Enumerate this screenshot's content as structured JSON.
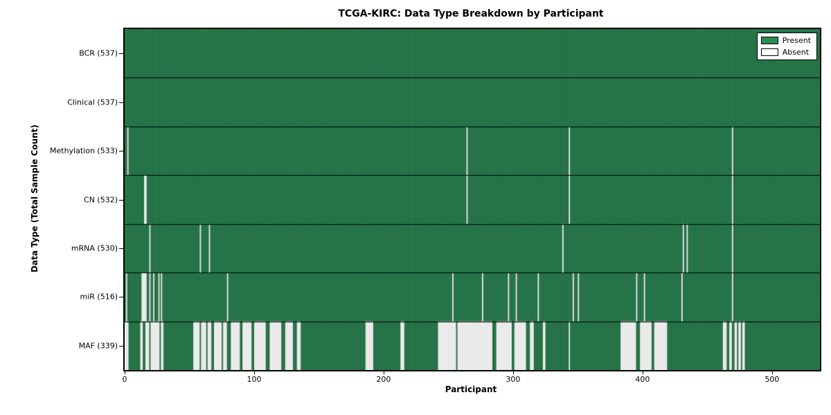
{
  "chart_data": {
    "type": "heatmap",
    "title": "TCGA-KIRC: Data Type Breakdown by Participant",
    "xlabel": "Participant",
    "ylabel": "Data Type (Total Sample Count)",
    "x_range": [
      0,
      537
    ],
    "x_ticks": [
      0,
      100,
      200,
      300,
      400,
      500
    ],
    "grid": false,
    "legend_position": "upper right",
    "legend": {
      "present": "Present",
      "absent": "Absent"
    },
    "colors": {
      "present": "#2e8b57",
      "present_edge": "rgba(0,0,0,0.45)",
      "absent": "#ffffff",
      "absent_edge": "rgba(0,0,0,0.22)",
      "row_separator": "#000000",
      "frame": "#000000"
    },
    "rows": [
      {
        "label": "BCR (537)",
        "data_type": "BCR",
        "present_count": 537,
        "absent_ranges": []
      },
      {
        "label": "Clinical (537)",
        "data_type": "Clinical",
        "present_count": 537,
        "absent_ranges": []
      },
      {
        "label": "Methylation (533)",
        "data_type": "Methylation",
        "present_count": 533,
        "absent_ranges": [
          [
            2,
            2
          ],
          [
            264,
            264
          ],
          [
            343,
            343
          ],
          [
            469,
            469
          ]
        ]
      },
      {
        "label": "CN (532)",
        "data_type": "CN",
        "present_count": 532,
        "absent_ranges": [
          [
            15,
            16
          ],
          [
            264,
            264
          ],
          [
            343,
            343
          ],
          [
            469,
            469
          ]
        ]
      },
      {
        "label": "mRNA (530)",
        "data_type": "mRNA",
        "present_count": 530,
        "absent_ranges": [
          [
            19,
            19
          ],
          [
            58,
            58
          ],
          [
            65,
            65
          ],
          [
            338,
            338
          ],
          [
            431,
            431
          ],
          [
            434,
            434
          ],
          [
            469,
            469
          ]
        ]
      },
      {
        "label": "miR (516)",
        "data_type": "miR",
        "present_count": 516,
        "absent_ranges": [
          [
            1,
            1
          ],
          [
            13,
            16
          ],
          [
            19,
            19
          ],
          [
            22,
            22
          ],
          [
            26,
            26
          ],
          [
            28,
            28
          ],
          [
            79,
            79
          ],
          [
            253,
            253
          ],
          [
            276,
            276
          ],
          [
            296,
            296
          ],
          [
            302,
            302
          ],
          [
            319,
            319
          ],
          [
            346,
            346
          ],
          [
            350,
            350
          ],
          [
            395,
            395
          ],
          [
            401,
            401
          ],
          [
            430,
            430
          ],
          [
            469,
            469
          ]
        ]
      },
      {
        "label": "MAF (339)",
        "data_type": "MAF",
        "present_count": 339,
        "absent_ranges": [
          [
            0,
            2
          ],
          [
            12,
            13
          ],
          [
            16,
            18
          ],
          [
            20,
            26
          ],
          [
            28,
            29
          ],
          [
            53,
            57
          ],
          [
            59,
            62
          ],
          [
            64,
            66
          ],
          [
            69,
            74
          ],
          [
            76,
            78
          ],
          [
            82,
            88
          ],
          [
            91,
            97
          ],
          [
            100,
            108
          ],
          [
            112,
            120
          ],
          [
            124,
            129
          ],
          [
            133,
            135
          ],
          [
            186,
            191
          ],
          [
            213,
            215
          ],
          [
            242,
            255
          ],
          [
            257,
            283
          ],
          [
            287,
            298
          ],
          [
            301,
            309
          ],
          [
            313,
            315
          ],
          [
            323,
            324
          ],
          [
            343,
            343
          ],
          [
            383,
            394
          ],
          [
            398,
            406
          ],
          [
            409,
            418
          ],
          [
            462,
            464
          ],
          [
            467,
            468
          ],
          [
            471,
            472
          ],
          [
            474,
            475
          ],
          [
            477,
            478
          ]
        ]
      }
    ]
  }
}
